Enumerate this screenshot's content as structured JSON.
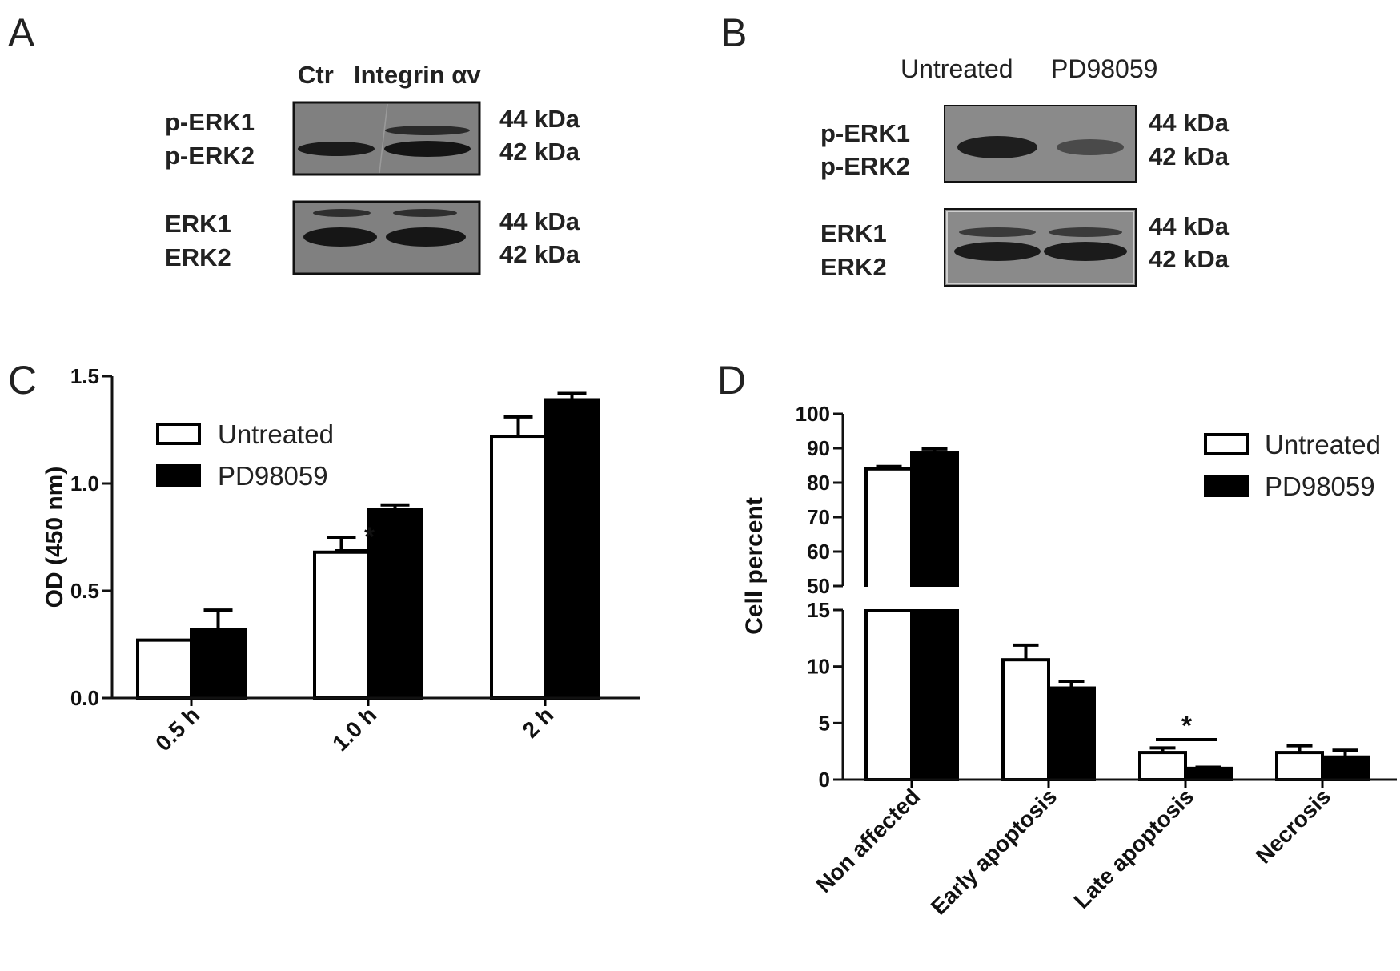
{
  "panels": {
    "a": {
      "letter": "A",
      "header_ctr": "Ctr",
      "header_integrin": "Integrin αv",
      "row1_label_1": "p-ERK1",
      "row1_label_2": "p-ERK2",
      "row2_label_1": "ERK1",
      "row2_label_2": "ERK2",
      "kda_44": "44 kDa",
      "kda_42": "42 kDa"
    },
    "b": {
      "letter": "B",
      "header_untreated": "Untreated",
      "header_pd": "PD98059",
      "row1_label_1": "p-ERK1",
      "row1_label_2": "p-ERK2",
      "row2_label_1": "ERK1",
      "row2_label_2": "ERK2",
      "kda_44": "44 kDa",
      "kda_42": "42 kDa"
    },
    "c": {
      "letter": "C"
    },
    "d": {
      "letter": "D"
    }
  },
  "colors": {
    "untreated_fill": "#ffffff",
    "pd_fill": "#000000",
    "axis": "#111111",
    "blot_bg": "#7b7b7b",
    "blot_band": "#1c1c1c"
  },
  "chart_data": [
    {
      "panel": "C",
      "type": "bar",
      "categories": [
        "0.5 h",
        "1.0 h",
        "2 h"
      ],
      "series": [
        {
          "name": "Untreated",
          "values": [
            0.27,
            0.68,
            1.22
          ],
          "errors": [
            0.0,
            0.07,
            0.09
          ]
        },
        {
          "name": "PD98059",
          "values": [
            0.32,
            0.88,
            1.39
          ],
          "errors": [
            0.09,
            0.02,
            0.03
          ]
        }
      ],
      "ylabel": "OD (450 nm)",
      "xlabel": "",
      "ylim": [
        0.0,
        1.5
      ],
      "yticks": [
        "0.0",
        "0.5",
        "1.0",
        "1.5"
      ],
      "significance": [
        {
          "category": "1.0 h",
          "label": "*"
        }
      ],
      "legend_placement": "top-left",
      "grid": false
    },
    {
      "panel": "D",
      "type": "bar",
      "categories": [
        "Non affected",
        "Early apoptosis",
        "Late apoptosis",
        "Necrosis"
      ],
      "series": [
        {
          "name": "Untreated",
          "values": [
            84.0,
            10.6,
            2.4,
            2.4
          ],
          "errors": [
            0.7,
            1.3,
            0.4,
            0.6
          ]
        },
        {
          "name": "PD98059",
          "values": [
            88.6,
            8.1,
            1.0,
            2.0
          ],
          "errors": [
            1.2,
            0.6,
            0.1,
            0.6
          ]
        }
      ],
      "ylabel": "Cell percent",
      "xlabel": "",
      "y_axis_break": {
        "lower": [
          0,
          15
        ],
        "upper": [
          50,
          100
        ]
      },
      "yticks_lower": [
        "0",
        "5",
        "10",
        "15"
      ],
      "yticks_upper": [
        "50",
        "60",
        "70",
        "80",
        "90",
        "100"
      ],
      "significance": [
        {
          "category": "Late apoptosis",
          "label": "*"
        }
      ],
      "legend_placement": "top-right",
      "grid": false
    }
  ]
}
